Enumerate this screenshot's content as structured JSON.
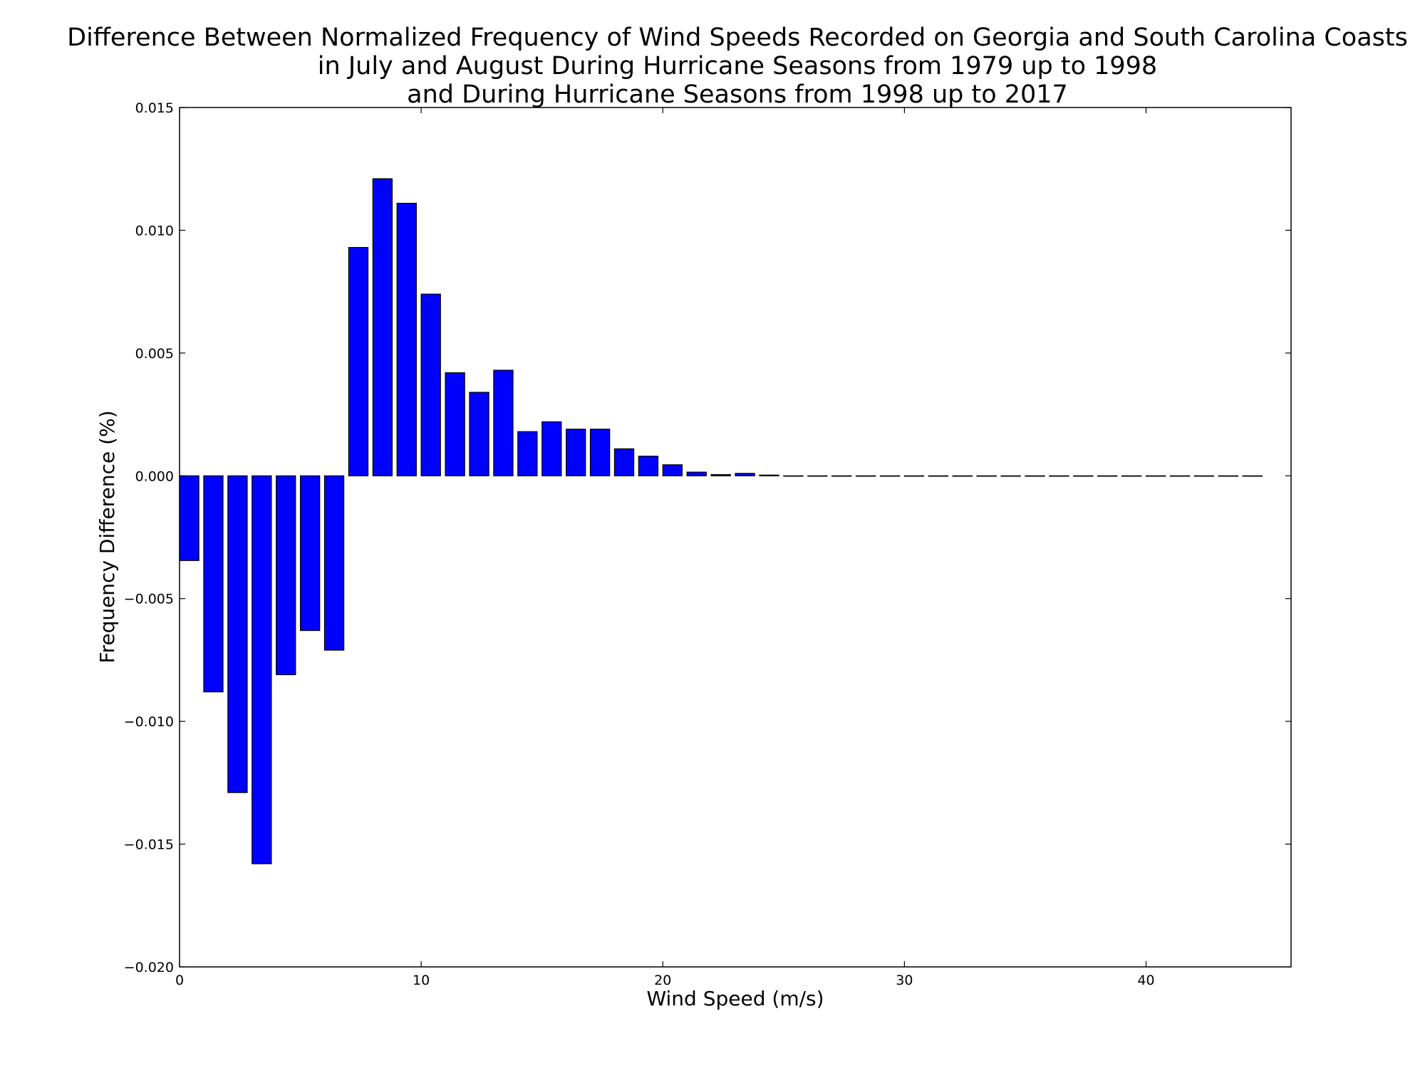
{
  "chart_data": {
    "type": "bar",
    "title_lines": [
      "Difference Between Normalized Frequency of Wind Speeds Recorded on Georgia and South Carolina Coasts",
      "in July and August During Hurricane Seasons from 1979 up to 1998",
      "and During Hurricane Seasons from 1998 up to 2017"
    ],
    "xlabel": "Wind Speed (m/s)",
    "ylabel": "Frequency Difference (%)",
    "xlim": [
      0,
      46
    ],
    "ylim": [
      -0.02,
      0.015
    ],
    "bar_width": 0.8,
    "x": [
      0,
      1,
      2,
      3,
      4,
      5,
      6,
      7,
      8,
      9,
      10,
      11,
      12,
      13,
      14,
      15,
      16,
      17,
      18,
      19,
      20,
      21,
      22,
      23,
      24,
      25,
      26,
      27,
      28,
      29,
      30,
      31,
      32,
      33,
      34,
      35,
      36,
      37,
      38,
      39,
      40,
      41,
      42,
      43,
      44
    ],
    "values": [
      -0.00345,
      -0.0088,
      -0.0129,
      -0.0158,
      -0.0081,
      -0.0063,
      -0.0071,
      0.0093,
      0.0121,
      0.0111,
      0.0074,
      0.0042,
      0.0034,
      0.0043,
      0.0018,
      0.0022,
      0.0019,
      0.0019,
      0.0011,
      0.0008,
      0.00045,
      0.00015,
      5e-05,
      0.0001,
      3e-05,
      0,
      0,
      0,
      0,
      0,
      0,
      0,
      0,
      0,
      0,
      0,
      0,
      0,
      0,
      0,
      0,
      0,
      0,
      0,
      0
    ],
    "xticks": [
      0,
      10,
      20,
      30,
      40
    ],
    "xtick_labels": [
      "0",
      "10",
      "20",
      "30",
      "40"
    ],
    "yticks": [
      -0.02,
      -0.015,
      -0.01,
      -0.005,
      0,
      0.005,
      0.01,
      0.015
    ],
    "ytick_labels": [
      "−0.020",
      "−0.015",
      "−0.010",
      "−0.005",
      "0.000",
      "0.005",
      "0.010",
      "0.015"
    ],
    "bar_color": "#0000ff",
    "edge_color": "#000000",
    "grid": false,
    "legend": "none"
  }
}
